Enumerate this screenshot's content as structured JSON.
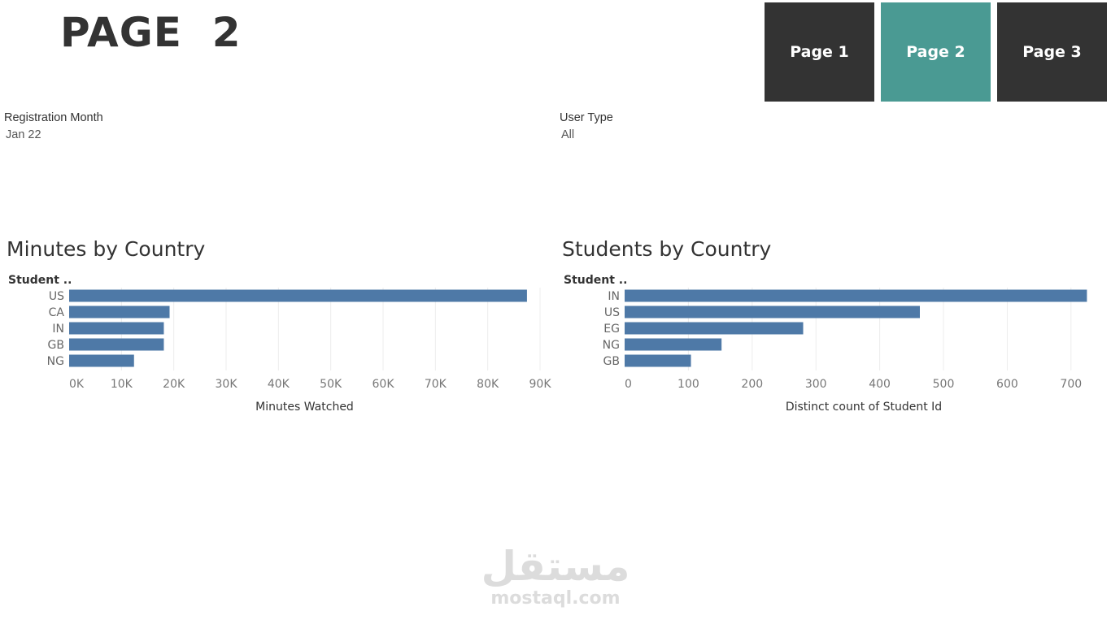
{
  "header": {
    "title": "PAGE  2"
  },
  "nav": {
    "buttons": [
      {
        "label": "Page 1",
        "active": false
      },
      {
        "label": "Page 2",
        "active": true
      },
      {
        "label": "Page 3",
        "active": false
      }
    ]
  },
  "filters": {
    "registration_month": {
      "label": "Registration Month",
      "value": "Jan 22"
    },
    "user_type": {
      "label": "User Type",
      "value": "All"
    }
  },
  "colors": {
    "bar": "#4e79a7",
    "active_nav": "#4a9a93",
    "inactive_nav": "#333333"
  },
  "chart_data": [
    {
      "type": "bar",
      "orientation": "horizontal",
      "title": "Minutes by Country",
      "row_header": "Student ..",
      "categories": [
        "US",
        "CA",
        "IN",
        "GB",
        "NG"
      ],
      "values": [
        87500,
        19200,
        18100,
        18100,
        12400
      ],
      "xlabel": "Minutes Watched",
      "xlim": [
        0,
        90000
      ],
      "ticks": [
        0,
        10000,
        20000,
        30000,
        40000,
        50000,
        60000,
        70000,
        80000,
        90000
      ],
      "tick_labels": [
        "0K",
        "10K",
        "20K",
        "30K",
        "40K",
        "50K",
        "60K",
        "70K",
        "80K",
        "90K"
      ],
      "grid": true
    },
    {
      "type": "bar",
      "orientation": "horizontal",
      "title": "Students by Country",
      "row_header": "Student ..",
      "categories": [
        "IN",
        "US",
        "EG",
        "NG",
        "GB"
      ],
      "values": [
        725,
        463,
        280,
        152,
        104
      ],
      "xlabel": "Distinct count of Student Id",
      "xlim": [
        0,
        750
      ],
      "ticks": [
        0,
        100,
        200,
        300,
        400,
        500,
        600,
        700
      ],
      "tick_labels": [
        "0",
        "100",
        "200",
        "300",
        "400",
        "500",
        "600",
        "700"
      ],
      "grid": true
    }
  ],
  "watermark": {
    "arabic": "مستقل",
    "latin": "mostaql.com"
  }
}
